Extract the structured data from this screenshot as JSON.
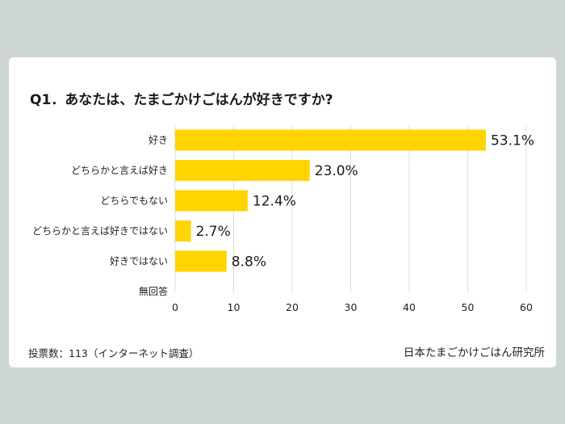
{
  "colors": {
    "background": "#cdd6d4",
    "card": "#ffffff",
    "bar": "#ffd400",
    "grid": "#dcdcdc"
  },
  "footer": {
    "note": "投票数：113（インターネット調査）",
    "source": "日本たまごかけごはん研究所"
  },
  "chart_data": {
    "type": "bar",
    "orientation": "horizontal",
    "title": "Q1．あなたは、たまごかけごはんが好きですか?",
    "categories": [
      "好き",
      "どちらかと言えば好き",
      "どちらでもない",
      "どちらかと言えば好きではない",
      "好きではない",
      "無回答"
    ],
    "values": [
      53.1,
      23.0,
      12.4,
      2.7,
      8.8,
      null
    ],
    "data_labels": [
      "53.1%",
      "23.0%",
      "12.4%",
      "2.7%",
      "8.8%",
      ""
    ],
    "xlim": [
      0,
      60
    ],
    "xticks": [
      0,
      10,
      20,
      30,
      40,
      50,
      60
    ],
    "xlabel": "",
    "ylabel": "",
    "grid": "vertical",
    "legend": "none"
  }
}
